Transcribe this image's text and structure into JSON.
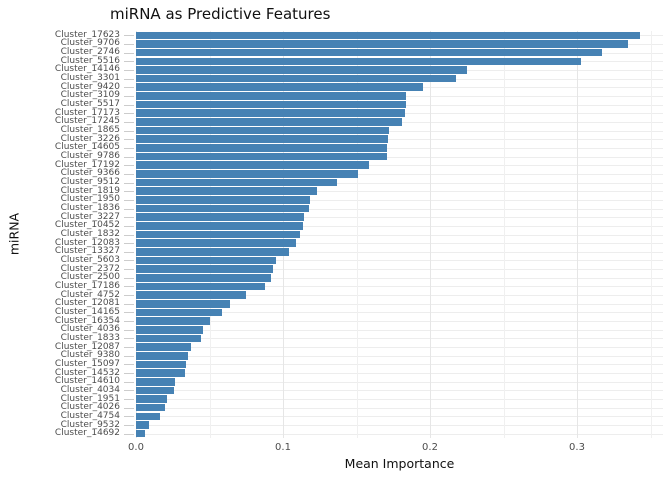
{
  "title": "miRNA as Predictive Features",
  "colors": {
    "bar": "#4682B4",
    "grid_major": "#e6e6e6",
    "grid_minor": "#f0f0f0",
    "hgrid": "#ededed",
    "tick_mark": "#cccccc",
    "tick_text": "#4d4d4d",
    "axis_title": "#111111",
    "background": "#ffffff"
  },
  "chart_data": {
    "type": "bar",
    "orientation": "horizontal",
    "title": "miRNA as Predictive Features",
    "xlabel": "Mean Importance",
    "ylabel": "miRNA",
    "grid": true,
    "legend_position": "none",
    "xlim": [
      0,
      0.3585
    ],
    "x_ticks": [
      0.0,
      0.1,
      0.2,
      0.3
    ],
    "x_tick_labels": [
      "0.0",
      "0.1",
      "0.2",
      "0.3"
    ],
    "x_minor_gridlines": [
      0.05,
      0.15,
      0.25,
      0.35
    ],
    "categories": [
      "Cluster_17623",
      "Cluster_9706",
      "Cluster_2746",
      "Cluster_5516",
      "Cluster_14146",
      "Cluster_3301",
      "Cluster_9420",
      "Cluster_3109",
      "Cluster_5517",
      "Cluster_17173",
      "Cluster_17245",
      "Cluster_1865",
      "Cluster_3226",
      "Cluster_14605",
      "Cluster_9786",
      "Cluster_17192",
      "Cluster_9366",
      "Cluster_9512",
      "Cluster_1819",
      "Cluster_1950",
      "Cluster_1836",
      "Cluster_3227",
      "Cluster_10452",
      "Cluster_1832",
      "Cluster_12083",
      "Cluster_13327",
      "Cluster_5603",
      "Cluster_2372",
      "Cluster_2500",
      "Cluster_17186",
      "Cluster_4752",
      "Cluster_12081",
      "Cluster_14165",
      "Cluster_16354",
      "Cluster_4036",
      "Cluster_1833",
      "Cluster_12087",
      "Cluster_9380",
      "Cluster_15097",
      "Cluster_14532",
      "Cluster_14610",
      "Cluster_4034",
      "Cluster_1951",
      "Cluster_4026",
      "Cluster_4754",
      "Cluster_9532",
      "Cluster_14692"
    ],
    "values": [
      0.343,
      0.335,
      0.317,
      0.303,
      0.225,
      0.218,
      0.195,
      0.184,
      0.1835,
      0.183,
      0.181,
      0.172,
      0.1715,
      0.171,
      0.1705,
      0.1585,
      0.151,
      0.137,
      0.123,
      0.1185,
      0.1175,
      0.114,
      0.1135,
      0.1115,
      0.109,
      0.104,
      0.095,
      0.093,
      0.092,
      0.088,
      0.075,
      0.064,
      0.0585,
      0.0503,
      0.0455,
      0.044,
      0.0375,
      0.0355,
      0.034,
      0.0333,
      0.0265,
      0.0258,
      0.021,
      0.0197,
      0.0163,
      0.0088,
      0.006
    ]
  }
}
